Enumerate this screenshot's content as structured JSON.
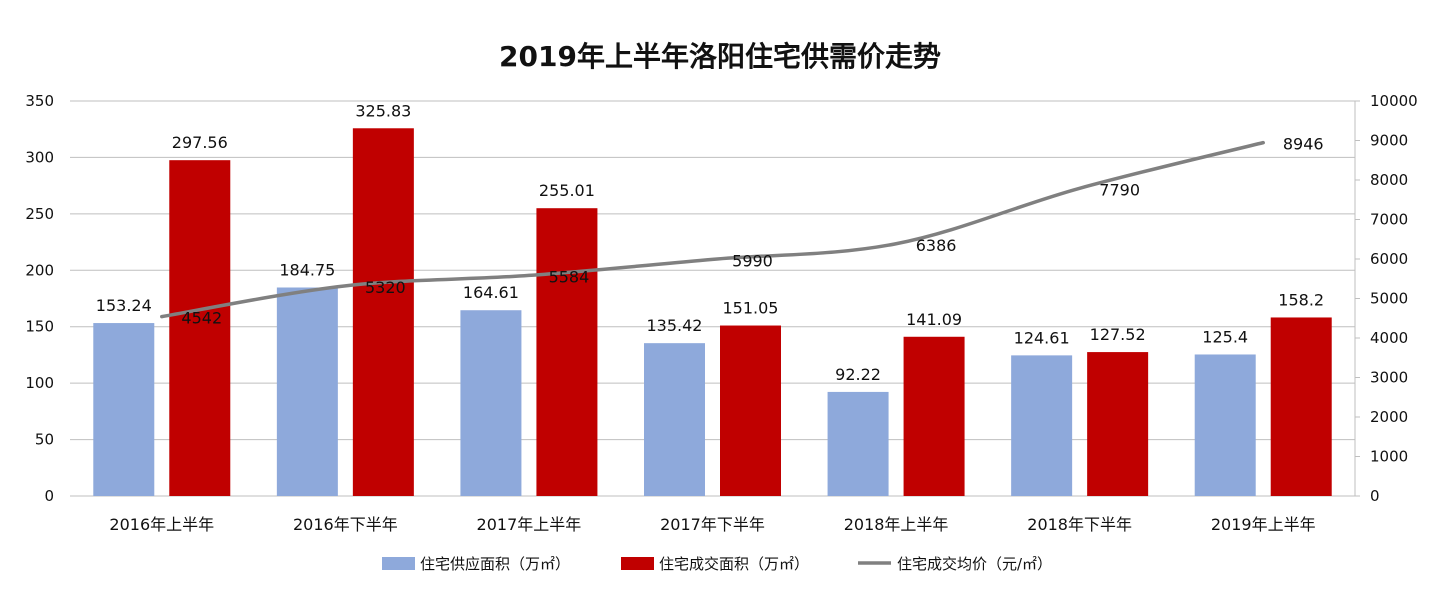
{
  "chart_data": {
    "type": "bar+line",
    "title": "2019年上半年洛阳住宅供需价走势",
    "categories": [
      "2016年上半年",
      "2016年下半年",
      "2017年上半年",
      "2017年下半年",
      "2018年上半年",
      "2018年下半年",
      "2019年上半年"
    ],
    "series": [
      {
        "name": "住宅供应面积（万㎡）",
        "type": "bar",
        "axis": "left",
        "color": "#8EA9DB",
        "values": [
          153.24,
          184.75,
          164.61,
          135.42,
          92.22,
          124.61,
          125.4
        ],
        "labels": [
          "153.24",
          "184.75",
          "164.61",
          "135.42",
          "92.22",
          "124.61",
          "125.4"
        ]
      },
      {
        "name": "住宅成交面积（万㎡）",
        "type": "bar",
        "axis": "left",
        "color": "#C00000",
        "values": [
          297.56,
          325.83,
          255.01,
          151.05,
          141.09,
          127.52,
          158.2
        ],
        "labels": [
          "297.56",
          "325.83",
          "255.01",
          "151.05",
          "141.09",
          "127.52",
          "158.2"
        ]
      },
      {
        "name": "住宅成交均价（元/㎡）",
        "type": "line",
        "axis": "right",
        "color": "#808080",
        "values": [
          4542,
          5320,
          5584,
          5990,
          6386,
          7790,
          8946
        ],
        "labels": [
          "4542",
          "5320",
          "5584",
          "5990",
          "6386",
          "7790",
          "8946"
        ]
      }
    ],
    "y_left": {
      "min": 0,
      "max": 350,
      "step": 50,
      "ticks": [
        "0",
        "50",
        "100",
        "150",
        "200",
        "250",
        "300",
        "350"
      ]
    },
    "y_right": {
      "min": 0,
      "max": 10000,
      "step": 1000,
      "ticks": [
        "0",
        "1000",
        "2000",
        "3000",
        "4000",
        "5000",
        "6000",
        "7000",
        "8000",
        "9000",
        "10000"
      ]
    },
    "grid": true,
    "legend_position": "bottom"
  }
}
